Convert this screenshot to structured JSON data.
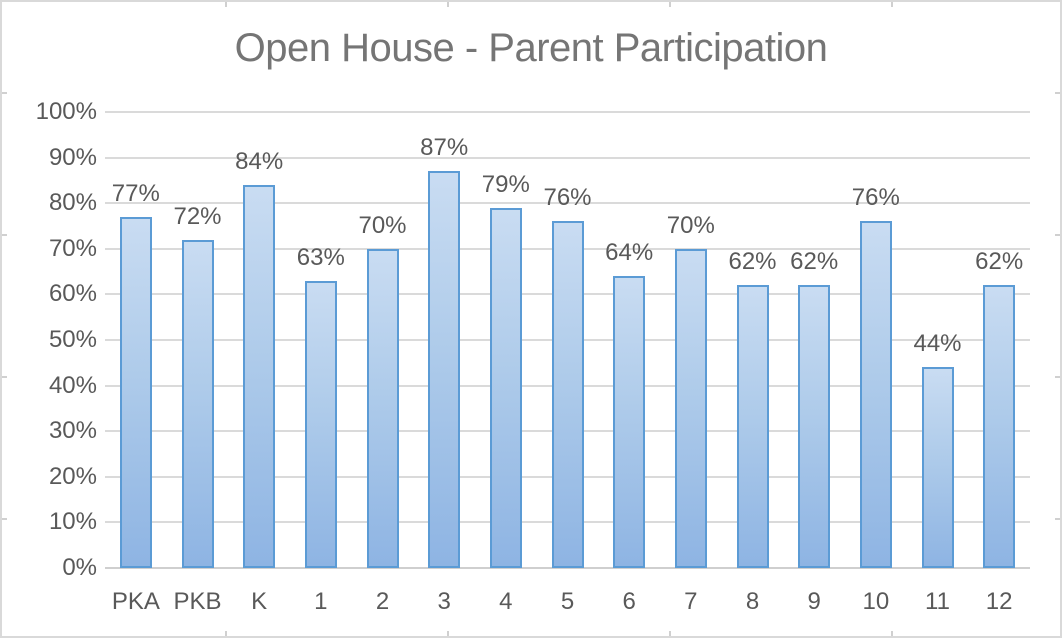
{
  "chart_data": {
    "type": "bar",
    "title": "Open House - Parent Participation",
    "categories": [
      "PKA",
      "PKB",
      "K",
      "1",
      "2",
      "3",
      "4",
      "5",
      "6",
      "7",
      "8",
      "9",
      "10",
      "11",
      "12"
    ],
    "values": [
      77,
      72,
      84,
      63,
      70,
      87,
      79,
      76,
      64,
      70,
      62,
      62,
      76,
      44,
      62
    ],
    "value_labels": [
      "77%",
      "72%",
      "84%",
      "63%",
      "70%",
      "87%",
      "79%",
      "76%",
      "64%",
      "70%",
      "62%",
      "62%",
      "76%",
      "44%",
      "62%"
    ],
    "xlabel": "",
    "ylabel": "",
    "ylim": [
      0,
      100
    ],
    "ytick_step": 10,
    "ytick_labels": [
      "0%",
      "10%",
      "20%",
      "30%",
      "40%",
      "50%",
      "60%",
      "70%",
      "80%",
      "90%",
      "100%"
    ],
    "grid": true,
    "legend": "none",
    "colors": {
      "bar_fill_top": "#c9dcf2",
      "bar_fill_bottom": "#8eb4e3",
      "bar_border": "#5b9bd5",
      "gridline": "#dadada",
      "axis_line": "#cfcfcf",
      "tick_text": "#595959",
      "data_label_text": "#595959",
      "title_text": "#757575",
      "chart_border": "#d9d9d9",
      "background": "#ffffff"
    }
  }
}
